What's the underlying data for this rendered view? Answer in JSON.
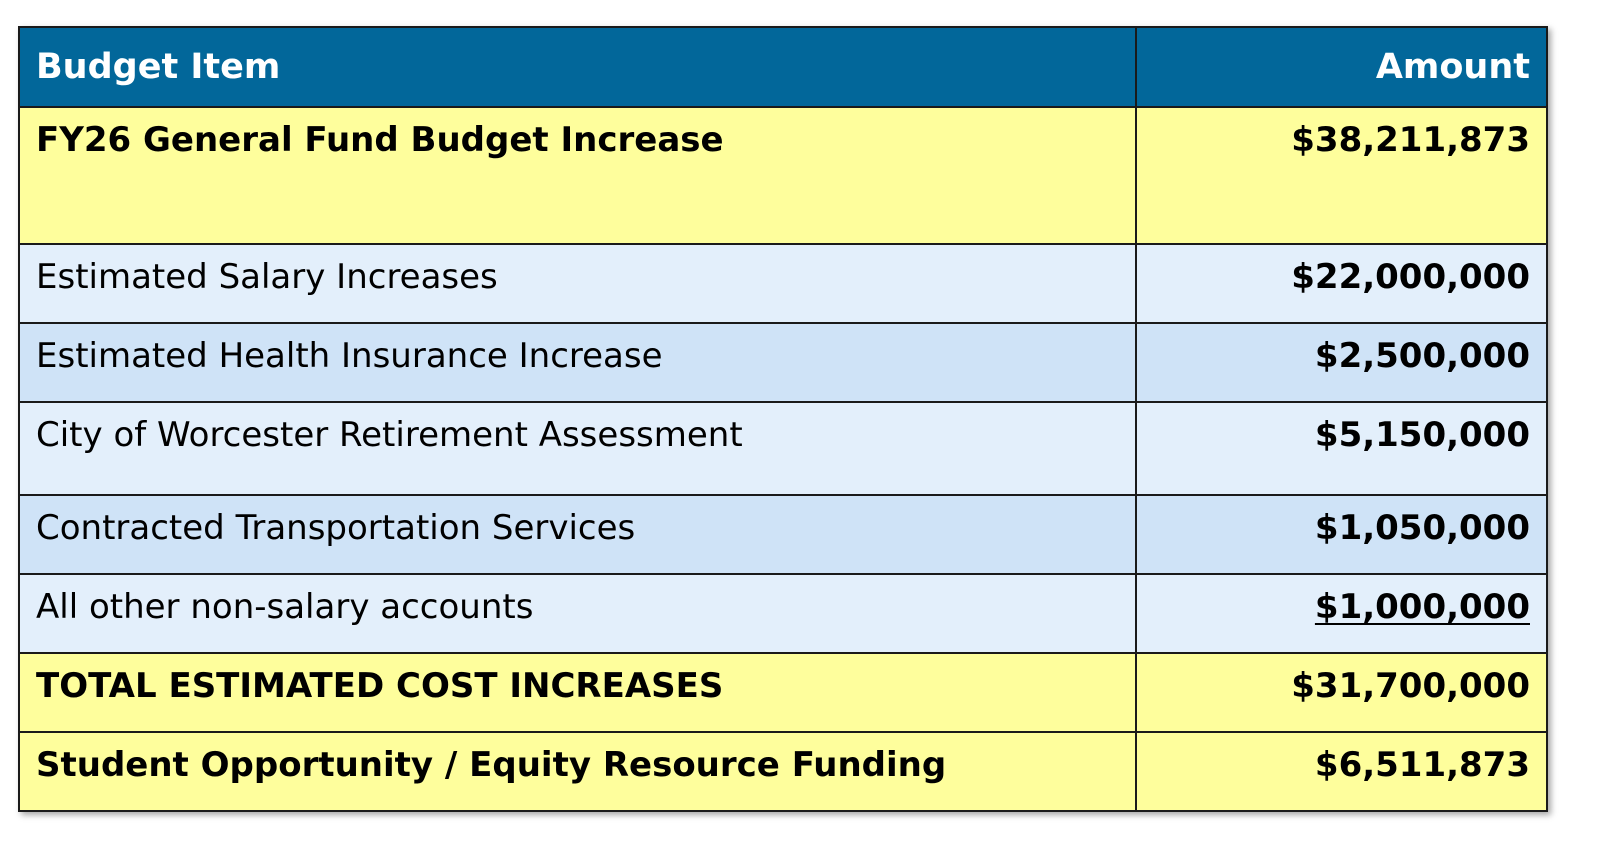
{
  "table": {
    "headers": {
      "item": "Budget Item",
      "amount": "Amount"
    },
    "rows": [
      {
        "item": "FY26 General Fund Budget Increase",
        "amount": "$38,211,873"
      },
      {
        "item": "Estimated Salary Increases",
        "amount": "$22,000,000"
      },
      {
        "item": "Estimated Health Insurance Increase",
        "amount": "$2,500,000"
      },
      {
        "item": "City of Worcester Retirement Assessment",
        "amount": "$5,150,000"
      },
      {
        "item": "Contracted Transportation Services",
        "amount": "$1,050,000"
      },
      {
        "item": "All other non-salary accounts",
        "amount": "$1,000,000"
      },
      {
        "item": "TOTAL ESTIMATED COST INCREASES",
        "amount": "$31,700,000"
      },
      {
        "item": "Student Opportunity / Equity Resource Funding",
        "amount": "$6,511,873"
      }
    ]
  },
  "colors": {
    "header": "#02679a",
    "highlight_yellow": "#fefe9c",
    "row_light": "#e3effb",
    "row_mid": "#cfe3f7"
  }
}
